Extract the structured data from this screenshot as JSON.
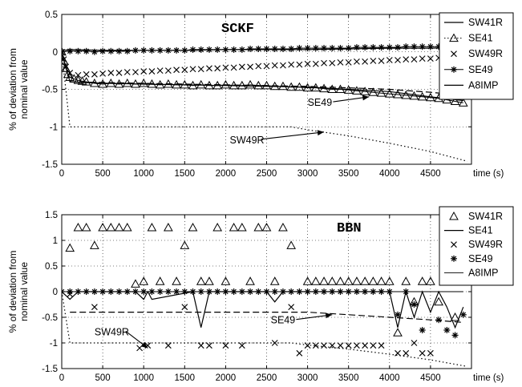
{
  "chart_data": [
    {
      "type": "line",
      "title": "SCKF",
      "ylabel": "% of deviation from nominal value",
      "ylabel_lines": [
        "% of deviation from",
        "nominal value"
      ],
      "xlabel": "time (s)",
      "xlim": [
        0,
        5000
      ],
      "ylim": [
        -1.5,
        0.5
      ],
      "xticks": [
        "0",
        "500",
        "1000",
        "1500",
        "2000",
        "2500",
        "3000",
        "3500",
        "4000",
        "4500"
      ],
      "yticks": [
        "0.5",
        "0",
        "-0.5",
        "-1",
        "-1.5"
      ],
      "grid": true,
      "legend_position": "top-right",
      "legend": [
        "SW41R",
        "SE41",
        "SW49R",
        "SE49",
        "A8IMP"
      ],
      "annotations": [
        {
          "text": "SE49",
          "x": 3000,
          "y": -0.72,
          "arrow_to": [
            3750,
            -0.6
          ]
        },
        {
          "text": "SW49R",
          "x": 2050,
          "y": -1.22,
          "arrow_to": [
            3200,
            -1.07
          ]
        }
      ],
      "series": [
        {
          "name": "SW41R",
          "style": "solid",
          "x": [
            0,
            20,
            100,
            500,
            1000,
            1500,
            2000,
            2500,
            3000,
            3500,
            4000,
            4500,
            4900
          ],
          "y": [
            0,
            0.02,
            0.03,
            0.02,
            0.02,
            0.02,
            0.03,
            0.03,
            0.03,
            0.04,
            0.05,
            0.05,
            0.06
          ]
        },
        {
          "name": "SE41",
          "style": "triangle-markers",
          "x": [
            0,
            25,
            50,
            75,
            100,
            150,
            200,
            250,
            300,
            400,
            500,
            600,
            700,
            800,
            900,
            1000,
            1100,
            1200,
            1300,
            1400,
            1500,
            1600,
            1700,
            1800,
            1900,
            2000,
            2100,
            2200,
            2300,
            2400,
            2500,
            2600,
            2700,
            2800,
            2900,
            3000,
            3100,
            3200,
            3300,
            3400,
            3500,
            3600,
            3700,
            3800,
            3900,
            4000,
            4100,
            4200,
            4300,
            4400,
            4500,
            4600,
            4700,
            4800,
            4900
          ],
          "y": [
            0,
            -0.12,
            -0.22,
            -0.3,
            -0.34,
            -0.36,
            -0.38,
            -0.39,
            -0.4,
            -0.42,
            -0.43,
            -0.42,
            -0.43,
            -0.42,
            -0.43,
            -0.42,
            -0.43,
            -0.44,
            -0.43,
            -0.44,
            -0.44,
            -0.45,
            -0.44,
            -0.45,
            -0.45,
            -0.44,
            -0.45,
            -0.45,
            -0.44,
            -0.45,
            -0.45,
            -0.46,
            -0.46,
            -0.47,
            -0.47,
            -0.48,
            -0.48,
            -0.49,
            -0.5,
            -0.5,
            -0.51,
            -0.52,
            -0.53,
            -0.54,
            -0.55,
            -0.56,
            -0.57,
            -0.58,
            -0.59,
            -0.6,
            -0.61,
            -0.62,
            -0.64,
            -0.66,
            -0.68
          ]
        },
        {
          "name": "SW49R",
          "style": "x-markers",
          "x": [
            0,
            25,
            50,
            100,
            200,
            300,
            400,
            500,
            600,
            700,
            800,
            900,
            1000,
            1100,
            1200,
            1300,
            1400,
            1500,
            1600,
            1700,
            1800,
            1900,
            2000,
            2100,
            2200,
            2300,
            2400,
            2500,
            2600,
            2700,
            2800,
            2900,
            3000,
            3100,
            3200,
            3300,
            3400,
            3500,
            3600,
            3700,
            3800,
            3900,
            4000,
            4100,
            4200,
            4300,
            4400,
            4500,
            4600,
            4700,
            4800,
            4900
          ],
          "y": [
            0,
            -0.1,
            -0.2,
            -0.28,
            -0.31,
            -0.3,
            -0.3,
            -0.29,
            -0.28,
            -0.28,
            -0.27,
            -0.27,
            -0.26,
            -0.26,
            -0.25,
            -0.25,
            -0.24,
            -0.24,
            -0.23,
            -0.23,
            -0.22,
            -0.22,
            -0.21,
            -0.21,
            -0.2,
            -0.2,
            -0.19,
            -0.19,
            -0.18,
            -0.18,
            -0.17,
            -0.17,
            -0.16,
            -0.16,
            -0.15,
            -0.15,
            -0.14,
            -0.14,
            -0.13,
            -0.13,
            -0.12,
            -0.12,
            -0.11,
            -0.11,
            -0.1,
            -0.1,
            -0.09,
            -0.09,
            -0.08,
            -0.08,
            -0.07,
            -0.07
          ]
        },
        {
          "name": "SE49",
          "style": "asterisk-markers",
          "x": [
            0,
            100,
            200,
            300,
            400,
            500,
            600,
            700,
            800,
            900,
            1000,
            1100,
            1200,
            1300,
            1400,
            1500,
            1600,
            1700,
            1800,
            1900,
            2000,
            2100,
            2200,
            2300,
            2400,
            2500,
            2600,
            2700,
            2800,
            2900,
            3000,
            3100,
            3200,
            3300,
            3400,
            3500,
            3600,
            3700,
            3800,
            3900,
            4000,
            4100,
            4200,
            4300,
            4400,
            4500,
            4600,
            4700,
            4800,
            4900
          ],
          "y": [
            0,
            0.01,
            0.01,
            0.01,
            0.0,
            0.01,
            0.01,
            0.01,
            0.01,
            0.02,
            0.02,
            0.02,
            0.02,
            0.02,
            0.02,
            0.02,
            0.03,
            0.03,
            0.03,
            0.03,
            0.03,
            0.03,
            0.03,
            0.04,
            0.04,
            0.04,
            0.04,
            0.04,
            0.04,
            0.05,
            0.05,
            0.05,
            0.05,
            0.05,
            0.05,
            0.05,
            0.06,
            0.06,
            0.06,
            0.06,
            0.06,
            0.06,
            0.07,
            0.07,
            0.07,
            0.07,
            0.07,
            0.07,
            0.08,
            0.08
          ]
        },
        {
          "name": "A8IMP",
          "style": "solid",
          "x": [
            0,
            100,
            300,
            600,
            1000,
            1500,
            2000,
            2500,
            3000,
            3500,
            4000,
            4500,
            4900
          ],
          "y": [
            0,
            -0.4,
            -0.41,
            -0.42,
            -0.43,
            -0.44,
            -0.45,
            -0.46,
            -0.47,
            -0.5,
            -0.53,
            -0.6,
            -0.65
          ]
        },
        {
          "name": "",
          "style": "dashed",
          "x": [
            100,
            1000,
            2000,
            3000,
            3500,
            4000,
            4500,
            4900
          ],
          "y": [
            -0.4,
            -0.42,
            -0.44,
            -0.46,
            -0.48,
            -0.5,
            -0.54,
            -0.58
          ]
        },
        {
          "name": "",
          "style": "dotted",
          "x": [
            0,
            60,
            100,
            500,
            1000,
            2000,
            2800,
            3000,
            3500,
            4000,
            4500,
            4950
          ],
          "y": [
            0,
            -0.6,
            -1.0,
            -1.0,
            -1.0,
            -1.0,
            -1.0,
            -1.04,
            -1.12,
            -1.22,
            -1.33,
            -1.46
          ]
        }
      ]
    },
    {
      "type": "line",
      "title": "BBN",
      "ylabel": "% of deviation from nominal value",
      "ylabel_lines": [
        "% of deviation from",
        "nominal value"
      ],
      "xlabel": "time (s)",
      "xlim": [
        0,
        5000
      ],
      "ylim": [
        -1.5,
        1.5
      ],
      "xticks": [
        "0",
        "500",
        "1000",
        "1500",
        "2000",
        "2500",
        "3000",
        "3500",
        "4000",
        "4500"
      ],
      "yticks": [
        "1.5",
        "1",
        "0.5",
        "0",
        "-0.5",
        "-1",
        "-1.5"
      ],
      "grid": true,
      "legend_position": "top-right",
      "legend": [
        "SW41R",
        "SE41",
        "SW49R",
        "SE49",
        "A8IMP"
      ],
      "annotations": [
        {
          "text": "SE49",
          "x": 2550,
          "y": -0.62,
          "arrow_to": [
            3300,
            -0.45
          ]
        },
        {
          "text": "SW49R",
          "x": 400,
          "y": -0.85,
          "arrow_to": [
            1050,
            -1.1
          ]
        }
      ],
      "series": [
        {
          "name": "SW41R",
          "style": "triangle-markers",
          "x": [
            100,
            200,
            300,
            400,
            500,
            600,
            700,
            800,
            900,
            1000,
            1100,
            1200,
            1300,
            1400,
            1500,
            1600,
            1700,
            1800,
            1900,
            2000,
            2100,
            2200,
            2300,
            2400,
            2500,
            2600,
            2700,
            2800,
            3000,
            3100,
            3200,
            3300,
            3400,
            3500,
            3600,
            3700,
            3800,
            3900,
            4000,
            4100,
            4200,
            4300,
            4400,
            4500,
            4600,
            4700,
            4800
          ],
          "y": [
            0.85,
            1.25,
            1.25,
            0.9,
            1.25,
            1.25,
            1.25,
            1.25,
            0.15,
            0.2,
            1.25,
            0.2,
            1.25,
            0.2,
            0.9,
            1.25,
            0.2,
            0.2,
            1.25,
            0.2,
            1.25,
            1.25,
            0.2,
            1.25,
            1.25,
            0.2,
            1.25,
            0.9,
            0.2,
            0.2,
            0.2,
            0.2,
            0.2,
            0.2,
            0.2,
            0.2,
            0.2,
            0.2,
            0.2,
            -0.8,
            0.2,
            -0.2,
            0.2,
            0.2,
            -0.2,
            0.2,
            -0.5
          ]
        },
        {
          "name": "SE41",
          "style": "solid",
          "x": [
            0,
            100,
            200,
            900,
            1000,
            1050,
            1100,
            1600,
            1700,
            1800,
            2500,
            2600,
            2700,
            4000,
            4100,
            4200,
            4300,
            4400,
            4500,
            4600,
            4700,
            4800,
            4900
          ],
          "y": [
            0,
            -0.15,
            0,
            0,
            -0.15,
            0,
            -0.15,
            0,
            -0.7,
            0,
            0,
            -0.2,
            0,
            0,
            -0.7,
            0,
            -0.5,
            0,
            -0.4,
            0,
            -0.3,
            -0.7,
            -0.3
          ]
        },
        {
          "name": "SW49R",
          "style": "x-markers",
          "x": [
            100,
            400,
            950,
            1050,
            1300,
            1500,
            1700,
            1800,
            2000,
            2200,
            2600,
            2800,
            2900,
            3000,
            3100,
            3200,
            3300,
            3400,
            3500,
            3600,
            3700,
            3800,
            3900,
            4100,
            4200,
            4300,
            4400,
            4500
          ],
          "y": [
            -0.05,
            -0.3,
            -1.1,
            -1.05,
            -1.05,
            -0.3,
            -1.05,
            -1.05,
            -1.05,
            -1.05,
            -1.0,
            -0.3,
            -1.2,
            -1.05,
            -1.05,
            -1.05,
            -1.05,
            -1.05,
            -1.05,
            -1.05,
            -1.05,
            -1.05,
            -1.05,
            -1.2,
            -1.2,
            -1.0,
            -1.2,
            -1.2
          ]
        },
        {
          "name": "SE49",
          "style": "asterisk-markers",
          "x": [
            0,
            100,
            200,
            300,
            400,
            500,
            600,
            700,
            800,
            900,
            1000,
            1100,
            1200,
            1300,
            1400,
            1500,
            1600,
            1700,
            1800,
            1900,
            2000,
            2100,
            2200,
            2300,
            2400,
            2500,
            2600,
            2700,
            2800,
            2900,
            3000,
            3100,
            3200,
            3300,
            3400,
            3500,
            3600,
            3700,
            3800,
            3900,
            4000,
            4100,
            4200,
            4300,
            4400,
            4600,
            4700,
            4800,
            4900
          ],
          "y": [
            0,
            0,
            0,
            0,
            0,
            0,
            0,
            0,
            0,
            0,
            0,
            0,
            0,
            0,
            0,
            0,
            0,
            0,
            0,
            0,
            0,
            0,
            0,
            0,
            0,
            0,
            0,
            0,
            0,
            0,
            0,
            0,
            0,
            0,
            0,
            0,
            0,
            0,
            0,
            0,
            0,
            -0.45,
            0,
            -0.25,
            -0.75,
            -0.55,
            -0.75,
            -0.85,
            -0.45
          ]
        },
        {
          "name": "A8IMP",
          "style": "thin",
          "x": [
            0,
            500,
            1000,
            1500,
            2000,
            2500,
            3000,
            3500,
            4000,
            4500,
            4900
          ],
          "y": [
            0,
            0,
            0,
            0,
            0,
            0,
            0,
            0,
            0,
            0,
            0
          ]
        },
        {
          "name": "",
          "style": "dashed",
          "x": [
            100,
            1000,
            2000,
            3000,
            3500,
            4000,
            4500,
            4900
          ],
          "y": [
            -0.4,
            -0.4,
            -0.4,
            -0.4,
            -0.45,
            -0.5,
            -0.55,
            -0.6
          ]
        },
        {
          "name": "",
          "style": "dotted",
          "x": [
            0,
            60,
            100,
            500,
            1000,
            2000,
            2800,
            3000,
            3500,
            4000,
            4500,
            4950
          ],
          "y": [
            0,
            -0.6,
            -1.0,
            -1.0,
            -1.0,
            -1.0,
            -1.0,
            -1.04,
            -1.12,
            -1.22,
            -1.33,
            -1.46
          ]
        }
      ]
    }
  ]
}
